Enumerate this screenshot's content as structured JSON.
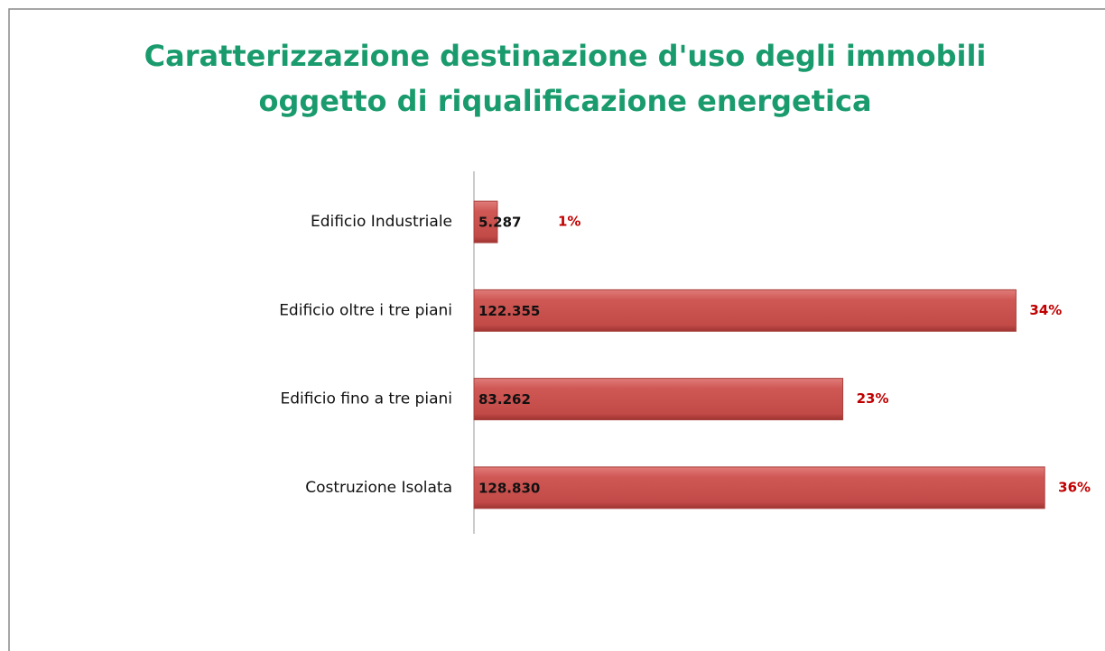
{
  "chart_data": {
    "type": "bar",
    "orientation": "horizontal",
    "title": [
      "Caratterizzazione destinazione d'uso degli immobili",
      "oggetto di riqualificazione energetica"
    ],
    "categories": [
      "Edificio Industriale",
      "Edificio oltre i tre piani",
      "Edificio fino a tre piani",
      "Costruzione Isolata"
    ],
    "values": [
      5287,
      122355,
      83262,
      128830
    ],
    "value_labels": [
      "5.287",
      "122.355",
      "83.262",
      "128.830"
    ],
    "share_labels": [
      "1%",
      "34%",
      "23%",
      "36%"
    ],
    "color": "#c9514e",
    "xlim": [
      0,
      140000
    ]
  }
}
